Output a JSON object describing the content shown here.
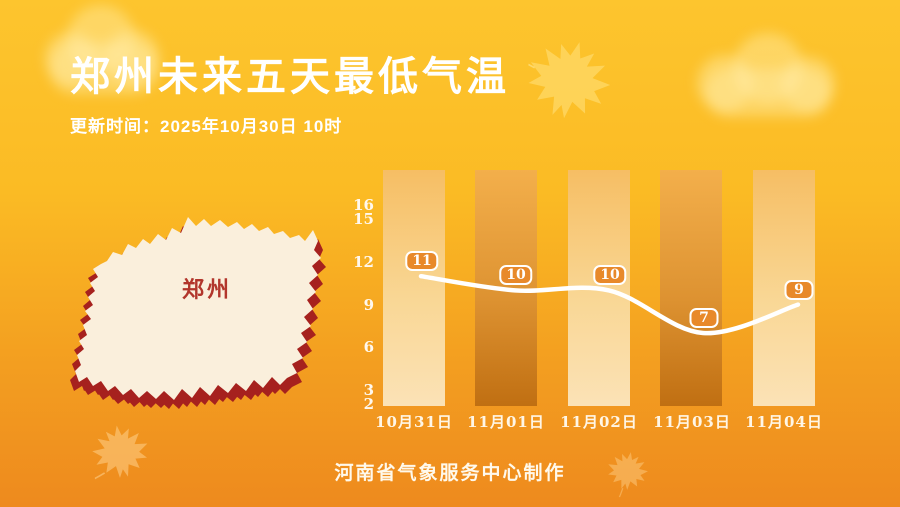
{
  "header": {
    "title": "郑州未来五天最低气温",
    "update_time": "更新时间：2025年10月30日 10时"
  },
  "map": {
    "label": "郑州"
  },
  "chart_data": {
    "type": "line",
    "title": "郑州未来五天最低气温",
    "categories": [
      "10月31日",
      "11月01日",
      "11月02日",
      "11月03日",
      "11月04日"
    ],
    "series": [
      {
        "name": "最低气温",
        "values": [
          11,
          10,
          10,
          7,
          9
        ]
      }
    ],
    "values": [
      11,
      10,
      10,
      7,
      9
    ],
    "xlabel": "",
    "ylabel": "",
    "yticks": [
      16,
      15,
      12,
      9,
      6,
      3,
      2
    ],
    "ylim": [
      2,
      16
    ],
    "grid": false,
    "legend": "none",
    "line_color": "#FFFFFF",
    "point_label_style": "rounded-badge"
  },
  "footer": {
    "credit": "河南省气象服务中心制作"
  },
  "colors": {
    "bg_top": "#FDC52E",
    "bg_bottom": "#EE8A1E",
    "bar_light_top": "#F6BE64",
    "bar_light_bottom": "#FBE2B6",
    "bar_dark_top": "#F3AF4B",
    "bar_dark_bottom": "#C06F12",
    "badge_fill": "#E8892A",
    "badge_border": "#FFFFFF",
    "map_fill": "#FAEFDC",
    "map_shadow": "#A6211E",
    "map_label": "#B2362C",
    "text": "#FFFFFF"
  }
}
